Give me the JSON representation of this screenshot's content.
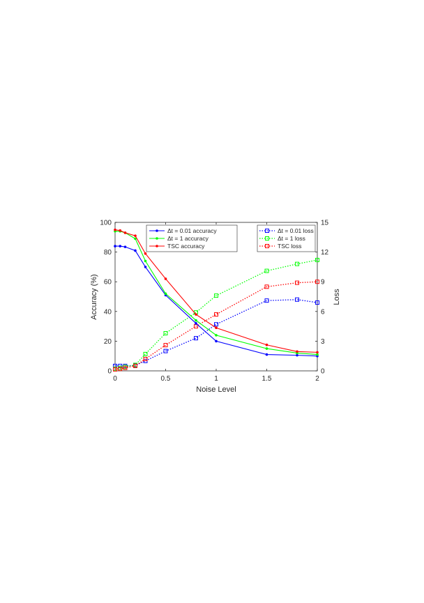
{
  "chart_data": {
    "type": "line",
    "title": "",
    "xlabel": "Noise Level",
    "ylabel_left": "Accuracy (%)",
    "ylabel_right": "Loss",
    "xlim": [
      0,
      2
    ],
    "ylim_left": [
      0,
      100
    ],
    "ylim_right": [
      0,
      15
    ],
    "x_ticks": [
      "0",
      "0.5",
      "1",
      "1.5",
      "2"
    ],
    "y_left_ticks": [
      "0",
      "20",
      "40",
      "60",
      "80",
      "100"
    ],
    "y_right_ticks": [
      "0",
      "3",
      "6",
      "9",
      "12",
      "15"
    ],
    "grid": false,
    "x": [
      0,
      0.05,
      0.1,
      0.2,
      0.3,
      0.5,
      0.8,
      1.0,
      1.5,
      1.8,
      2.0
    ],
    "accuracy_series": [
      {
        "name": "Δt = 0.01 accuracy",
        "color": "#0000ff",
        "marker": "dot",
        "line": "solid",
        "axis": "left",
        "values": [
          84,
          84,
          83.5,
          81,
          70,
          51,
          32,
          20,
          11,
          10.5,
          10
        ]
      },
      {
        "name": "Δt = 1 accuracy",
        "color": "#00ff00",
        "marker": "dot",
        "line": "solid",
        "axis": "left",
        "values": [
          94,
          94,
          93,
          89,
          74,
          52,
          34,
          24,
          15,
          12,
          11
        ]
      },
      {
        "name": "TSC accuracy",
        "color": "#ff0000",
        "marker": "dot",
        "line": "solid",
        "axis": "left",
        "values": [
          95,
          94.5,
          93,
          91,
          79,
          62,
          38,
          29,
          17.5,
          13,
          12.5
        ]
      }
    ],
    "loss_series": [
      {
        "name": "Δt = 0.01 loss",
        "color": "#0000ff",
        "marker": "square",
        "line": "dotted",
        "axis": "right",
        "values": [
          0.5,
          0.5,
          0.5,
          0.55,
          1.0,
          2.0,
          3.3,
          4.7,
          7.1,
          7.2,
          6.9
        ]
      },
      {
        "name": "Δt = 1 loss",
        "color": "#00ff00",
        "marker": "square",
        "line": "dotted",
        "axis": "right",
        "values": [
          0.2,
          0.3,
          0.4,
          0.6,
          1.7,
          3.8,
          5.9,
          7.6,
          10.1,
          10.8,
          11.2
        ]
      },
      {
        "name": "TSC loss",
        "color": "#ff0000",
        "marker": "square",
        "line": "dotted",
        "axis": "right",
        "values": [
          0.15,
          0.2,
          0.3,
          0.5,
          1.2,
          2.6,
          4.5,
          5.7,
          8.5,
          8.9,
          9.0
        ]
      }
    ],
    "legend_accuracy_placement": "top-center",
    "legend_loss_placement": "top-right"
  }
}
